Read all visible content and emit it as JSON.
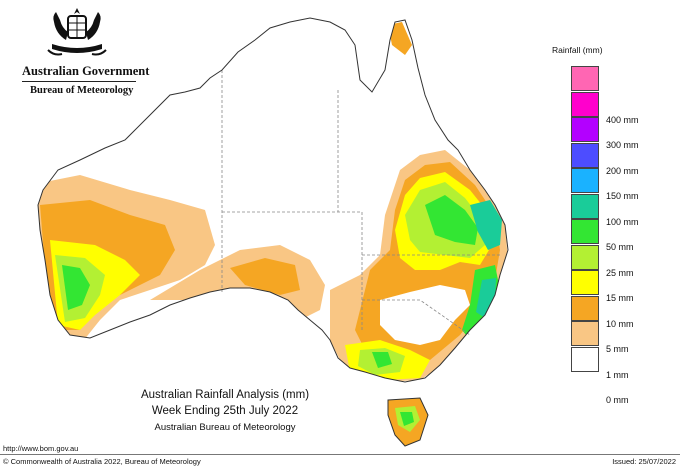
{
  "header": {
    "government": "Australian Government",
    "bureau": "Bureau of Meteorology"
  },
  "legend": {
    "title": "Rainfall (mm)",
    "items": [
      {
        "label": "",
        "color": "#ff66b3"
      },
      {
        "label": "400 mm",
        "color": "#ff00cc"
      },
      {
        "label": "300 mm",
        "color": "#b300ff"
      },
      {
        "label": "200 mm",
        "color": "#4d4dff"
      },
      {
        "label": "150 mm",
        "color": "#1ab2ff"
      },
      {
        "label": "100 mm",
        "color": "#1acc99"
      },
      {
        "label": "50 mm",
        "color": "#33e633"
      },
      {
        "label": "25 mm",
        "color": "#b3f033"
      },
      {
        "label": "15 mm",
        "color": "#ffff00"
      },
      {
        "label": "10 mm",
        "color": "#f5a623"
      },
      {
        "label": "5 mm",
        "color": "#f9c684"
      },
      {
        "label": "1 mm",
        "color": "#ffffff"
      },
      {
        "label": "0 mm",
        "color": ""
      }
    ]
  },
  "caption": {
    "line1": "Australian Rainfall Analysis (mm)",
    "line2": "Week Ending 25th July 2022",
    "line3": "Australian Bureau of Meteorology"
  },
  "footer": {
    "url": "http://www.bom.gov.au",
    "copyright": "© Commonwealth of Australia 2022, Bureau of Meteorology",
    "issued": "Issued: 25/07/2022"
  }
}
